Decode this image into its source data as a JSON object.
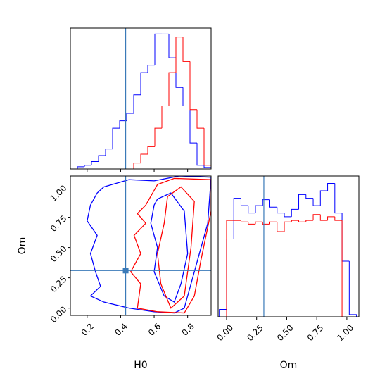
{
  "chart_data": [
    {
      "type": "histogram",
      "xlim": [
        0.1,
        0.94
      ],
      "ylim": [
        0,
        190
      ],
      "xticks": [
        0.2,
        0.4,
        0.6,
        0.8
      ],
      "truth": 0.43,
      "truth_color": "#3a7ab8",
      "bins": [
        0.1,
        0.142,
        0.184,
        0.226,
        0.268,
        0.31,
        0.352,
        0.394,
        0.436,
        0.478,
        0.52,
        0.562,
        0.604,
        0.646,
        0.688,
        0.73,
        0.772,
        0.814,
        0.856,
        0.898,
        0.94
      ],
      "series": [
        {
          "color": "#0000ff",
          "values": [
            0,
            3,
            5,
            10,
            18,
            27,
            55,
            65,
            75,
            100,
            130,
            140,
            182,
            182,
            150,
            110,
            85,
            35,
            5,
            2
          ]
        },
        {
          "color": "#ff0000",
          "values": [
            0,
            0,
            0,
            0,
            0,
            0,
            0,
            0,
            0,
            8,
            20,
            30,
            55,
            85,
            130,
            178,
            145,
            80,
            55,
            5
          ]
        }
      ]
    },
    {
      "type": "contour",
      "xlim": [
        0.1,
        0.94
      ],
      "ylim": [
        -0.06,
        1.09
      ],
      "xlabel": "H0",
      "ylabel": "Om",
      "xticks": [
        0.2,
        0.4,
        0.6,
        0.8
      ],
      "yticks": [
        {
          "value": 0,
          "label": "0.00"
        },
        {
          "value": 0.25,
          "label": "0.25"
        },
        {
          "value": 0.5,
          "label": "0.50"
        },
        {
          "value": 0.75,
          "label": "0.75"
        },
        {
          "value": 1,
          "label": "1.00"
        }
      ],
      "truth": [
        0.43,
        0.31
      ],
      "truth_color": "#3a7ab8",
      "contours": [
        {
          "color": "#0000ff",
          "x": [
            0.3,
            0.45,
            0.6,
            0.75,
            0.94,
            0.92,
            0.86,
            0.82,
            0.78,
            0.72,
            0.6,
            0.45,
            0.3,
            0.22,
            0.28,
            0.25,
            0.22,
            0.26,
            0.2,
            0.22,
            0.26
          ],
          "y": [
            1.0,
            1.06,
            1.05,
            1.09,
            1.08,
            0.7,
            0.4,
            0.2,
            0.0,
            -0.04,
            -0.03,
            0.0,
            0.05,
            0.1,
            0.18,
            0.3,
            0.45,
            0.6,
            0.72,
            0.85,
            0.95
          ]
        },
        {
          "color": "#0000ff",
          "x": [
            0.62,
            0.7,
            0.78,
            0.8,
            0.76,
            0.72,
            0.66,
            0.6,
            0.62,
            0.58,
            0.6
          ],
          "y": [
            0.9,
            0.95,
            0.8,
            0.45,
            0.2,
            0.05,
            0.1,
            0.3,
            0.5,
            0.7,
            0.85
          ]
        },
        {
          "color": "#ff0000",
          "x": [
            0.55,
            0.62,
            0.72,
            0.94,
            0.94,
            0.88,
            0.84,
            0.78,
            0.62,
            0.5,
            0.52,
            0.46,
            0.52,
            0.48,
            0.55,
            0.5
          ],
          "y": [
            0.85,
            1.02,
            1.07,
            1.06,
            0.8,
            0.4,
            0.1,
            -0.04,
            -0.03,
            0.0,
            0.2,
            0.3,
            0.45,
            0.6,
            0.7,
            0.78
          ]
        },
        {
          "color": "#ff0000",
          "x": [
            0.68,
            0.76,
            0.84,
            0.82,
            0.78,
            0.7,
            0.64,
            0.62,
            0.66
          ],
          "y": [
            0.92,
            1.0,
            0.88,
            0.5,
            0.1,
            0.0,
            0.2,
            0.45,
            0.7
          ]
        }
      ]
    },
    {
      "type": "histogram",
      "xlim": [
        -0.07,
        1.1
      ],
      "ylim": [
        0,
        190
      ],
      "xlabel": "Om",
      "truth": 0.31,
      "truth_color": "#3a7ab8",
      "xticks": [
        {
          "value": 0,
          "label": "0.00"
        },
        {
          "value": 0.25,
          "label": "0.25"
        },
        {
          "value": 0.5,
          "label": "0.50"
        },
        {
          "value": 0.75,
          "label": "0.75"
        },
        {
          "value": 1,
          "label": "1.00"
        }
      ],
      "bins": [
        -0.06,
        0,
        0.06,
        0.12,
        0.18,
        0.24,
        0.3,
        0.36,
        0.42,
        0.48,
        0.54,
        0.6,
        0.66,
        0.72,
        0.78,
        0.84,
        0.9,
        0.96,
        1.02,
        1.08
      ],
      "series": [
        {
          "color": "#0000ff",
          "values": [
            10,
            105,
            160,
            150,
            140,
            150,
            158,
            148,
            140,
            135,
            145,
            165,
            160,
            150,
            170,
            180,
            140,
            75,
            3
          ]
        },
        {
          "color": "#ff0000",
          "values": [
            0,
            130,
            130,
            128,
            125,
            128,
            125,
            128,
            115,
            128,
            130,
            128,
            130,
            138,
            130,
            135,
            130,
            0,
            0
          ]
        }
      ]
    }
  ]
}
